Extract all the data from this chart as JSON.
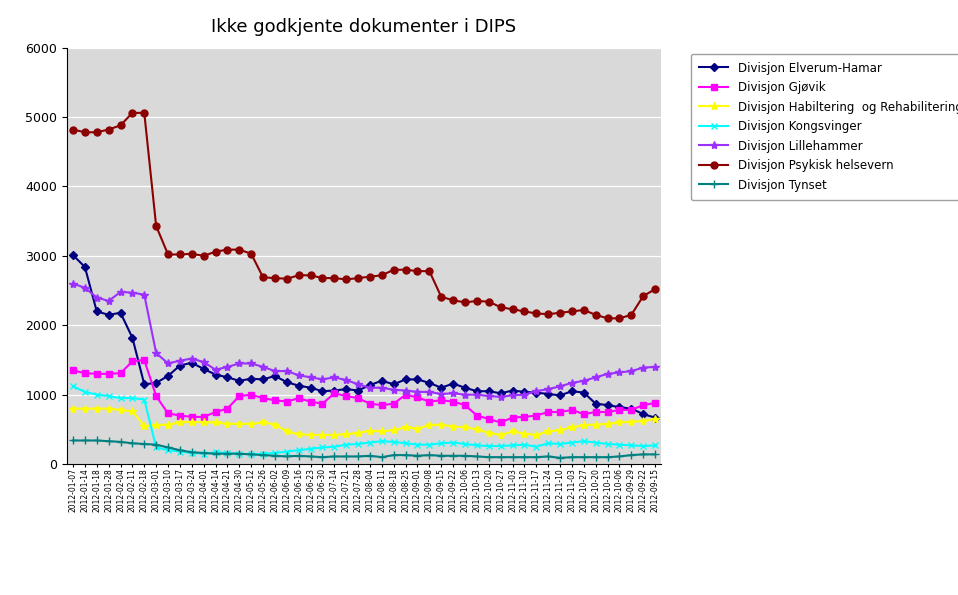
{
  "title": "Ikke godkjente dokumenter i DIPS",
  "fig_bg_color": "#ffffff",
  "plot_bg_color": "#d9d9d9",
  "ylim": [
    0,
    6000
  ],
  "yticks": [
    0,
    1000,
    2000,
    3000,
    4000,
    5000,
    6000
  ],
  "x_labels": [
    "2012-01-07",
    "2012-01-14",
    "2012-01-18",
    "2012-01-28",
    "2012-02-04",
    "2012-02-11",
    "2012-02-18",
    "2012-03-01",
    "2012-03-10",
    "2012-03-17",
    "2012-03-24",
    "2012-04-01",
    "2012-04-14",
    "2012-04-21",
    "2012-04-30",
    "2012-05-12",
    "2012-05-26",
    "2012-06-02",
    "2012-06-09",
    "2012-06-16",
    "2012-06-23",
    "2012-06-30",
    "2012-07-14",
    "2012-07-21",
    "2012-07-28",
    "2012-08-04",
    "2012-08-11",
    "2012-08-18",
    "2012-08-25",
    "2012-09-01",
    "2012-09-08",
    "2012-09-15",
    "2012-09-22",
    "2012-10-06",
    "2012-10-13",
    "2012-10-20",
    "2012-10-27",
    "2012-11-03",
    "2012-11-10",
    "2012-11-17",
    "2012-11-24",
    "2012-11-10",
    "2012-11-03",
    "2012-10-27",
    "2012-10-20",
    "2012-10-13",
    "2012-10-06",
    "2012-09-29",
    "2012-09-22",
    "2012-09-15"
  ],
  "series": [
    {
      "label": "Divisjon Elverum-Hamar",
      "color": "#000080",
      "marker": "D",
      "markersize": 4,
      "linewidth": 1.5,
      "values": [
        3010,
        2840,
        2200,
        2150,
        2180,
        1820,
        1150,
        1170,
        1270,
        1420,
        1460,
        1370,
        1290,
        1250,
        1200,
        1230,
        1220,
        1270,
        1180,
        1130,
        1100,
        1050,
        1060,
        1080,
        1060,
        1140,
        1200,
        1150,
        1220,
        1220,
        1170,
        1100,
        1160,
        1100,
        1050,
        1050,
        1020,
        1060,
        1040,
        1030,
        1010,
        990,
        1050,
        1030,
        870,
        850,
        820,
        800,
        720,
        670
      ]
    },
    {
      "label": "Divisjon Gjøvik",
      "color": "#ff00ff",
      "marker": "s",
      "markersize": 4,
      "linewidth": 1.5,
      "values": [
        1350,
        1310,
        1300,
        1300,
        1310,
        1480,
        1500,
        980,
        730,
        700,
        680,
        680,
        750,
        800,
        980,
        1000,
        950,
        920,
        900,
        950,
        900,
        870,
        1020,
        980,
        950,
        870,
        850,
        870,
        1000,
        960,
        900,
        920,
        900,
        850,
        700,
        650,
        600,
        670,
        680,
        700,
        750,
        750,
        780,
        720,
        750,
        750,
        780,
        780,
        850,
        880
      ]
    },
    {
      "label": "Divisjon Habiltering  og Rehabilitering",
      "color": "#ffff00",
      "marker": "*",
      "markersize": 6,
      "linewidth": 1.5,
      "values": [
        800,
        800,
        800,
        800,
        780,
        760,
        550,
        560,
        570,
        600,
        610,
        600,
        600,
        580,
        580,
        580,
        600,
        570,
        470,
        430,
        420,
        420,
        420,
        430,
        450,
        480,
        470,
        490,
        530,
        510,
        560,
        570,
        540,
        530,
        500,
        450,
        420,
        470,
        440,
        420,
        470,
        490,
        530,
        560,
        570,
        580,
        600,
        610,
        620,
        650
      ]
    },
    {
      "label": "Divisjon Kongsvinger",
      "color": "#00ffff",
      "marker": "x",
      "markersize": 5,
      "linewidth": 1.5,
      "values": [
        1120,
        1040,
        1000,
        980,
        950,
        950,
        930,
        240,
        200,
        180,
        160,
        150,
        170,
        160,
        150,
        140,
        150,
        160,
        180,
        200,
        220,
        240,
        250,
        280,
        290,
        310,
        330,
        320,
        300,
        280,
        280,
        300,
        310,
        290,
        270,
        260,
        260,
        270,
        280,
        250,
        300,
        290,
        310,
        330,
        310,
        290,
        280,
        270,
        260,
        270
      ]
    },
    {
      "label": "Divisjon Lillehammer",
      "color": "#9b30ff",
      "marker": "*",
      "markersize": 6,
      "linewidth": 1.5,
      "values": [
        2600,
        2540,
        2400,
        2350,
        2480,
        2470,
        2440,
        1600,
        1450,
        1490,
        1520,
        1470,
        1360,
        1400,
        1450,
        1450,
        1400,
        1340,
        1340,
        1280,
        1250,
        1220,
        1250,
        1210,
        1150,
        1100,
        1100,
        1070,
        1060,
        1040,
        1040,
        1010,
        1020,
        1000,
        1000,
        980,
        970,
        990,
        1000,
        1050,
        1080,
        1120,
        1170,
        1200,
        1250,
        1300,
        1320,
        1340,
        1390,
        1400
      ]
    },
    {
      "label": "Divisjon Psykisk helsevern",
      "color": "#8b0000",
      "marker": "o",
      "markersize": 5,
      "linewidth": 1.5,
      "values": [
        4820,
        4780,
        4780,
        4820,
        4880,
        5060,
        5060,
        3430,
        3020,
        3020,
        3030,
        3000,
        3060,
        3090,
        3090,
        3030,
        2690,
        2680,
        2670,
        2720,
        2720,
        2680,
        2680,
        2660,
        2680,
        2700,
        2720,
        2800,
        2800,
        2780,
        2780,
        2410,
        2360,
        2330,
        2350,
        2340,
        2260,
        2230,
        2200,
        2170,
        2160,
        2180,
        2200,
        2220,
        2150,
        2100,
        2100,
        2150,
        2420,
        2520
      ]
    },
    {
      "label": "Divisjon Tynset",
      "color": "#008080",
      "marker": "+",
      "markersize": 6,
      "linewidth": 1.5,
      "values": [
        340,
        340,
        340,
        330,
        320,
        300,
        290,
        280,
        240,
        200,
        170,
        160,
        150,
        150,
        150,
        140,
        130,
        120,
        110,
        120,
        110,
        100,
        110,
        110,
        110,
        120,
        100,
        130,
        130,
        120,
        130,
        120,
        120,
        120,
        110,
        100,
        100,
        100,
        100,
        100,
        110,
        90,
        100,
        100,
        100,
        100,
        110,
        130,
        140,
        140
      ]
    }
  ]
}
